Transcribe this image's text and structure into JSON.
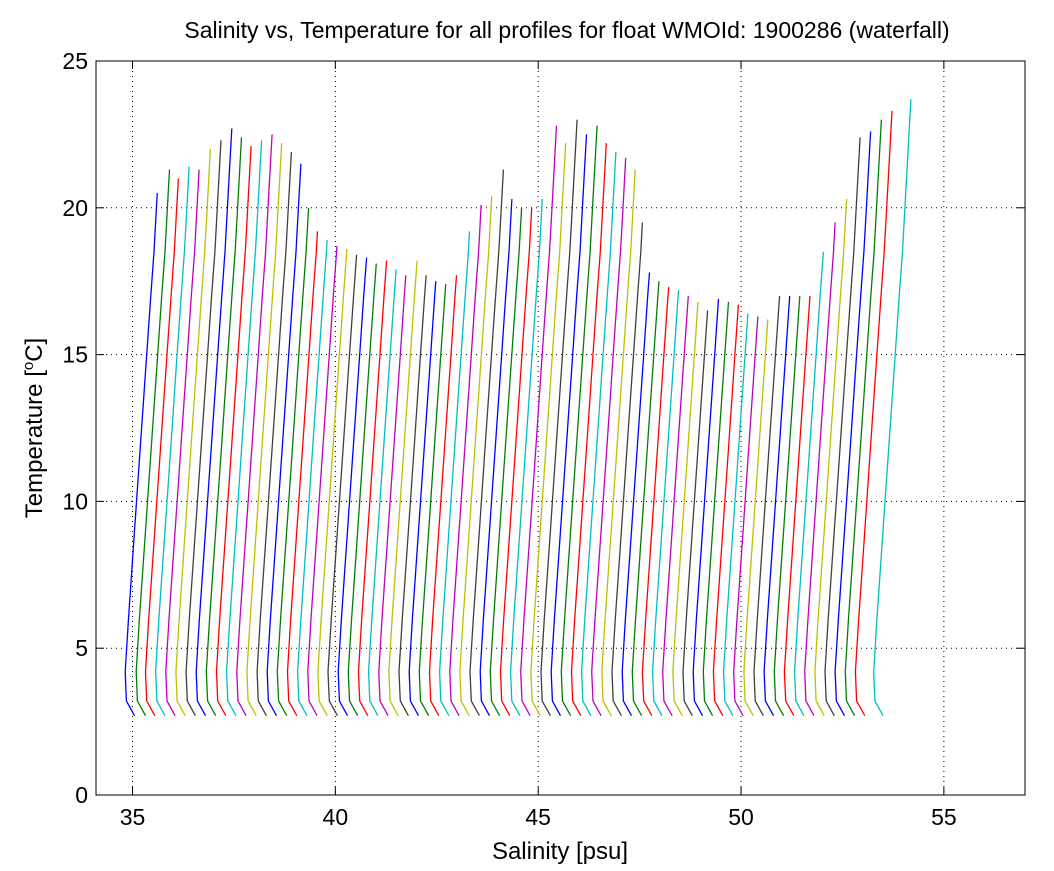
{
  "chart_data": {
    "type": "line",
    "title": "Salinity vs, Temperature for all profiles for float WMOId: 1900286 (waterfall)",
    "xlabel": "Salinity [psu]",
    "ylabel_main": "Temperature [",
    "ylabel_sup": "o",
    "ylabel_end": "C]",
    "xlim": [
      34.1,
      57.0
    ],
    "ylim": [
      0,
      25
    ],
    "xticks": [
      35,
      40,
      45,
      50,
      55
    ],
    "yticks": [
      0,
      5,
      10,
      15,
      20,
      25
    ],
    "grid": "dotted",
    "legend": "none",
    "colors": [
      "#0000ff",
      "#008000",
      "#ff0000",
      "#00bfbf",
      "#bf00bf",
      "#bfbf00",
      "#404040"
    ],
    "profile_shape": {
      "T": [
        2.7,
        3.2,
        4.2,
        6.0,
        9.0,
        12.0,
        15.0,
        17.0,
        18.5,
        20.0
      ],
      "dS": [
        0.2,
        0.0,
        -0.03,
        0.05,
        0.2,
        0.35,
        0.5,
        0.6,
        0.68,
        0.74
      ]
    },
    "profiles": [
      {
        "s": 34.85,
        "top": 20.5
      },
      {
        "s": 35.12,
        "top": 21.3
      },
      {
        "s": 35.35,
        "top": 21.0
      },
      {
        "s": 35.6,
        "top": 21.4
      },
      {
        "s": 35.85,
        "top": 21.3
      },
      {
        "s": 36.1,
        "top": 22.0
      },
      {
        "s": 36.35,
        "top": 22.3
      },
      {
        "s": 36.6,
        "top": 22.7
      },
      {
        "s": 36.85,
        "top": 22.4
      },
      {
        "s": 37.1,
        "top": 22.1
      },
      {
        "s": 37.35,
        "top": 22.3
      },
      {
        "s": 37.6,
        "top": 22.5
      },
      {
        "s": 37.85,
        "top": 22.2
      },
      {
        "s": 38.1,
        "top": 21.9
      },
      {
        "s": 38.35,
        "top": 21.5
      },
      {
        "s": 38.6,
        "top": 20.0
      },
      {
        "s": 38.85,
        "top": 19.2
      },
      {
        "s": 39.1,
        "top": 18.9
      },
      {
        "s": 39.35,
        "top": 18.7
      },
      {
        "s": 39.6,
        "top": 18.6
      },
      {
        "s": 39.85,
        "top": 18.4
      },
      {
        "s": 40.1,
        "top": 18.3
      },
      {
        "s": 40.35,
        "top": 18.1
      },
      {
        "s": 40.6,
        "top": 18.2
      },
      {
        "s": 40.85,
        "top": 17.9
      },
      {
        "s": 41.1,
        "top": 17.7
      },
      {
        "s": 41.35,
        "top": 18.2
      },
      {
        "s": 41.6,
        "top": 17.7
      },
      {
        "s": 41.85,
        "top": 17.5
      },
      {
        "s": 42.1,
        "top": 17.4
      },
      {
        "s": 42.35,
        "top": 17.7
      },
      {
        "s": 42.6,
        "top": 19.2
      },
      {
        "s": 42.85,
        "top": 20.1
      },
      {
        "s": 43.1,
        "top": 20.4
      },
      {
        "s": 43.35,
        "top": 21.3
      },
      {
        "s": 43.6,
        "top": 20.3
      },
      {
        "s": 43.85,
        "top": 20.0
      },
      {
        "s": 44.1,
        "top": 20.0
      },
      {
        "s": 44.35,
        "top": 20.3
      },
      {
        "s": 44.6,
        "top": 22.8
      },
      {
        "s": 44.85,
        "top": 22.2
      },
      {
        "s": 45.1,
        "top": 23.0
      },
      {
        "s": 45.35,
        "top": 22.5
      },
      {
        "s": 45.6,
        "top": 22.8
      },
      {
        "s": 45.85,
        "top": 22.2
      },
      {
        "s": 46.1,
        "top": 21.9
      },
      {
        "s": 46.35,
        "top": 21.7
      },
      {
        "s": 46.6,
        "top": 21.3
      },
      {
        "s": 46.85,
        "top": 19.5
      },
      {
        "s": 47.1,
        "top": 17.8
      },
      {
        "s": 47.35,
        "top": 17.5
      },
      {
        "s": 47.6,
        "top": 17.3
      },
      {
        "s": 47.85,
        "top": 17.2
      },
      {
        "s": 48.1,
        "top": 17.0
      },
      {
        "s": 48.35,
        "top": 16.8
      },
      {
        "s": 48.6,
        "top": 16.5
      },
      {
        "s": 48.85,
        "top": 16.9
      },
      {
        "s": 49.1,
        "top": 16.8
      },
      {
        "s": 49.35,
        "top": 16.7
      },
      {
        "s": 49.6,
        "top": 16.4
      },
      {
        "s": 49.85,
        "top": 16.3
      },
      {
        "s": 50.1,
        "top": 16.2
      },
      {
        "s": 50.35,
        "top": 17.0
      },
      {
        "s": 50.6,
        "top": 17.0
      },
      {
        "s": 50.85,
        "top": 17.0
      },
      {
        "s": 51.1,
        "top": 17.0
      },
      {
        "s": 51.35,
        "top": 18.5
      },
      {
        "s": 51.6,
        "top": 19.5
      },
      {
        "s": 51.85,
        "top": 20.3
      },
      {
        "s": 52.1,
        "top": 22.4
      },
      {
        "s": 52.35,
        "top": 22.6
      },
      {
        "s": 52.6,
        "top": 23.0
      },
      {
        "s": 52.85,
        "top": 23.3
      },
      {
        "s": 53.3,
        "top": 23.7
      }
    ]
  }
}
